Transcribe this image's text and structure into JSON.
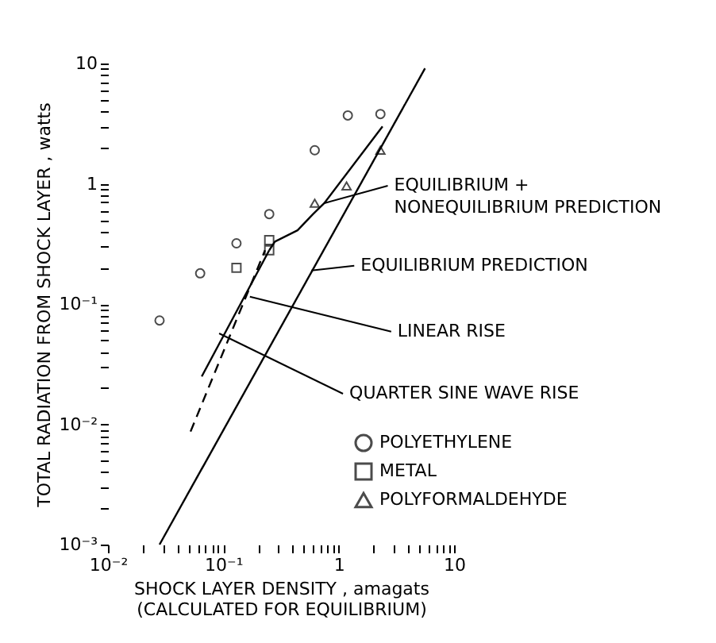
{
  "chart_data": {
    "type": "scatter",
    "xlabel": "SHOCK LAYER DENSITY , amagats\n(CALCULATED FOR EQUILIBRIUM)",
    "ylabel": "TOTAL RADIATION FROM SHOCK LAYER , watts",
    "log": "xy",
    "grid": false,
    "legend": "bottom right",
    "xlim": [
      0.01,
      10
    ],
    "ylim": [
      0.001,
      10
    ],
    "xticks": [
      {
        "value": 0.01,
        "label": "10⁻²"
      },
      {
        "value": 0.02,
        "label": null
      },
      {
        "value": 0.03,
        "label": null
      },
      {
        "value": 0.04,
        "label": null
      },
      {
        "value": 0.05,
        "label": null
      },
      {
        "value": 0.06,
        "label": null
      },
      {
        "value": 0.07,
        "label": null
      },
      {
        "value": 0.08,
        "label": null
      },
      {
        "value": 0.09,
        "label": null
      },
      {
        "value": 0.1,
        "label": "10⁻¹"
      },
      {
        "value": 0.2,
        "label": null
      },
      {
        "value": 0.3,
        "label": null
      },
      {
        "value": 0.4,
        "label": null
      },
      {
        "value": 0.5,
        "label": null
      },
      {
        "value": 0.6,
        "label": null
      },
      {
        "value": 0.7,
        "label": null
      },
      {
        "value": 0.8,
        "label": null
      },
      {
        "value": 0.9,
        "label": null
      },
      {
        "value": 1,
        "label": "1"
      },
      {
        "value": 2,
        "label": null
      },
      {
        "value": 3,
        "label": null
      },
      {
        "value": 4,
        "label": null
      },
      {
        "value": 5,
        "label": null
      },
      {
        "value": 6,
        "label": null
      },
      {
        "value": 7,
        "label": null
      },
      {
        "value": 8,
        "label": null
      },
      {
        "value": 9,
        "label": null
      },
      {
        "value": 10,
        "label": "10"
      }
    ],
    "yticks": [
      {
        "value": 0.001,
        "label": "10⁻³"
      },
      {
        "value": 0.002,
        "label": null
      },
      {
        "value": 0.003,
        "label": null
      },
      {
        "value": 0.004,
        "label": null
      },
      {
        "value": 0.005,
        "label": null
      },
      {
        "value": 0.006,
        "label": null
      },
      {
        "value": 0.007,
        "label": null
      },
      {
        "value": 0.008,
        "label": null
      },
      {
        "value": 0.009,
        "label": null
      },
      {
        "value": 0.01,
        "label": "10⁻²"
      },
      {
        "value": 0.02,
        "label": null
      },
      {
        "value": 0.03,
        "label": null
      },
      {
        "value": 0.04,
        "label": null
      },
      {
        "value": 0.05,
        "label": null
      },
      {
        "value": 0.06,
        "label": null
      },
      {
        "value": 0.07,
        "label": null
      },
      {
        "value": 0.08,
        "label": null
      },
      {
        "value": 0.09,
        "label": null
      },
      {
        "value": 0.1,
        "label": "10⁻¹"
      },
      {
        "value": 0.2,
        "label": null
      },
      {
        "value": 0.3,
        "label": null
      },
      {
        "value": 0.4,
        "label": null
      },
      {
        "value": 0.5,
        "label": null
      },
      {
        "value": 0.6,
        "label": null
      },
      {
        "value": 0.7,
        "label": null
      },
      {
        "value": 0.8,
        "label": null
      },
      {
        "value": 0.9,
        "label": null
      },
      {
        "value": 1,
        "label": "1"
      },
      {
        "value": 2,
        "label": null
      },
      {
        "value": 3,
        "label": null
      },
      {
        "value": 4,
        "label": null
      },
      {
        "value": 5,
        "label": null
      },
      {
        "value": 6,
        "label": null
      },
      {
        "value": 7,
        "label": null
      },
      {
        "value": 8,
        "label": null
      },
      {
        "value": 9,
        "label": null
      },
      {
        "value": 10,
        "label": "10"
      }
    ],
    "series": [
      {
        "name": "POLYETHYLENE",
        "marker": "circle",
        "color": "#000000",
        "x": [
          0.028,
          0.063,
          0.13,
          0.25,
          0.62,
          1.2,
          2.3
        ],
        "values": [
          0.073,
          0.18,
          0.32,
          0.56,
          1.9,
          3.7,
          3.8
        ]
      },
      {
        "name": "METAL",
        "marker": "square",
        "color": "#000000",
        "x": [
          0.13,
          0.25,
          0.25
        ],
        "values": [
          0.2,
          0.34,
          0.28
        ]
      },
      {
        "name": "POLYFORMALDEHYDE",
        "marker": "triangle",
        "color": "#000000",
        "x": [
          0.62,
          1.17,
          2.3
        ],
        "values": [
          0.69,
          0.96,
          1.9
        ]
      },
      {
        "type": "line",
        "color": "#000000",
        "line_style": "solid",
        "x": [
          0.028,
          5.6
        ],
        "values": [
          0.001,
          9.1
        ]
      },
      {
        "type": "line",
        "color": "#000000",
        "line_style": "solid",
        "x": [
          0.065,
          0.25
        ],
        "values": [
          0.025,
          0.28
        ]
      },
      {
        "type": "line",
        "color": "#000000",
        "line_style": "dashed",
        "x": [
          0.052,
          0.23
        ],
        "values": [
          0.0087,
          0.28
        ]
      },
      {
        "type": "line",
        "color": "#000000",
        "line_style": "solid",
        "x": [
          0.25,
          0.28,
          0.44,
          0.6,
          0.75,
          2.4
        ],
        "values": [
          0.28,
          0.33,
          0.41,
          0.56,
          0.69,
          3.0
        ]
      }
    ],
    "annotations": [
      {
        "text": "EQUILIBRIUM +\nNONEQUILIBRIUM PREDICTION",
        "x": 0.75,
        "y": 0.69
      },
      {
        "text": "EQUILIBRIUM PREDICTION",
        "x": 0.58,
        "y": 0.19
      },
      {
        "text": "LINEAR RISE",
        "x": 0.17,
        "y": 0.115
      },
      {
        "text": "QUARTER SINE WAVE RISE",
        "x": 0.092,
        "y": 0.057
      }
    ]
  }
}
